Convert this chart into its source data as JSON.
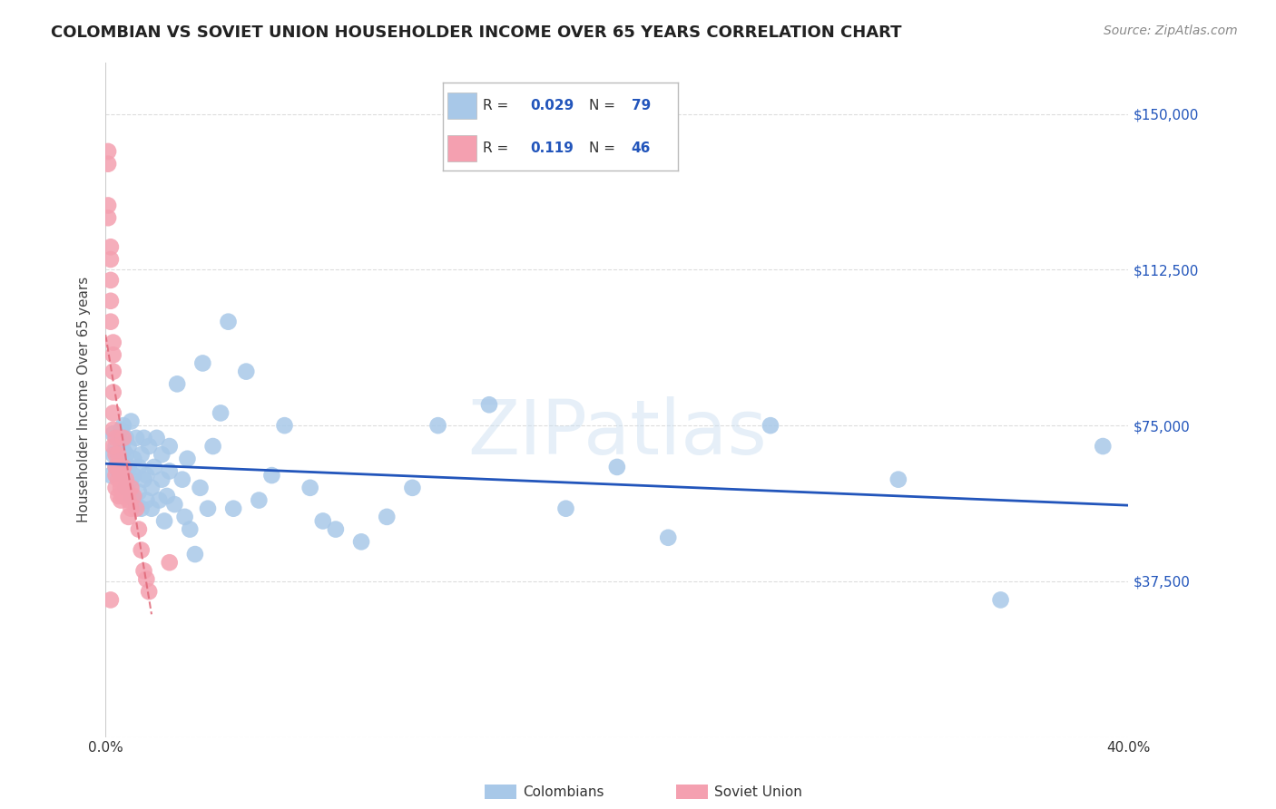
{
  "title": "COLOMBIAN VS SOVIET UNION HOUSEHOLDER INCOME OVER 65 YEARS CORRELATION CHART",
  "source": "Source: ZipAtlas.com",
  "ylabel": "Householder Income Over 65 years",
  "xlim": [
    0.0,
    0.4
  ],
  "ylim": [
    0,
    162500
  ],
  "yticks": [
    0,
    37500,
    75000,
    112500,
    150000
  ],
  "ytick_labels": [
    "",
    "$37,500",
    "$75,000",
    "$112,500",
    "$150,000"
  ],
  "xticks": [
    0.0,
    0.1,
    0.2,
    0.3,
    0.4
  ],
  "xtick_labels": [
    "0.0%",
    "",
    "",
    "",
    "40.0%"
  ],
  "colombian_color": "#a8c8e8",
  "soviet_color": "#f4a0b0",
  "trendline_colombian_color": "#2255bb",
  "trendline_soviet_color": "#e06878",
  "watermark": "ZIPatlas",
  "background_color": "#ffffff",
  "grid_color": "#dddddd",
  "colombians_x": [
    0.002,
    0.003,
    0.003,
    0.004,
    0.004,
    0.005,
    0.005,
    0.005,
    0.006,
    0.006,
    0.006,
    0.007,
    0.007,
    0.007,
    0.008,
    0.008,
    0.008,
    0.009,
    0.009,
    0.01,
    0.01,
    0.01,
    0.011,
    0.011,
    0.012,
    0.012,
    0.013,
    0.013,
    0.014,
    0.014,
    0.015,
    0.015,
    0.016,
    0.016,
    0.017,
    0.018,
    0.018,
    0.019,
    0.02,
    0.021,
    0.022,
    0.022,
    0.023,
    0.024,
    0.025,
    0.025,
    0.027,
    0.028,
    0.03,
    0.031,
    0.032,
    0.033,
    0.035,
    0.037,
    0.038,
    0.04,
    0.042,
    0.045,
    0.048,
    0.05,
    0.055,
    0.06,
    0.065,
    0.07,
    0.08,
    0.085,
    0.09,
    0.1,
    0.11,
    0.12,
    0.13,
    0.15,
    0.18,
    0.2,
    0.22,
    0.26,
    0.31,
    0.35,
    0.39
  ],
  "colombians_y": [
    63000,
    68000,
    73000,
    65000,
    70000,
    67000,
    72000,
    64000,
    71000,
    66000,
    74000,
    63000,
    69000,
    75000,
    68000,
    72000,
    60000,
    65000,
    70000,
    62000,
    76000,
    58000,
    63000,
    67000,
    56000,
    72000,
    59000,
    65000,
    68000,
    55000,
    72000,
    62000,
    57000,
    63000,
    70000,
    55000,
    60000,
    65000,
    72000,
    57000,
    62000,
    68000,
    52000,
    58000,
    64000,
    70000,
    56000,
    85000,
    62000,
    53000,
    67000,
    50000,
    44000,
    60000,
    90000,
    55000,
    70000,
    78000,
    100000,
    55000,
    88000,
    57000,
    63000,
    75000,
    60000,
    52000,
    50000,
    47000,
    53000,
    60000,
    75000,
    80000,
    55000,
    65000,
    48000,
    75000,
    62000,
    33000,
    70000
  ],
  "soviet_x": [
    0.001,
    0.001,
    0.001,
    0.001,
    0.002,
    0.002,
    0.002,
    0.002,
    0.002,
    0.003,
    0.003,
    0.003,
    0.003,
    0.003,
    0.003,
    0.003,
    0.004,
    0.004,
    0.004,
    0.004,
    0.004,
    0.005,
    0.005,
    0.005,
    0.005,
    0.006,
    0.006,
    0.006,
    0.007,
    0.007,
    0.007,
    0.008,
    0.008,
    0.009,
    0.009,
    0.01,
    0.01,
    0.011,
    0.012,
    0.013,
    0.014,
    0.015,
    0.016,
    0.017,
    0.025,
    0.002
  ],
  "soviet_y": [
    138000,
    141000,
    125000,
    128000,
    115000,
    118000,
    110000,
    105000,
    100000,
    95000,
    92000,
    88000,
    83000,
    78000,
    74000,
    70000,
    68000,
    65000,
    72000,
    63000,
    60000,
    68000,
    65000,
    62000,
    58000,
    63000,
    60000,
    57000,
    72000,
    65000,
    58000,
    60000,
    62000,
    57000,
    53000,
    60000,
    55000,
    58000,
    55000,
    50000,
    45000,
    40000,
    38000,
    35000,
    42000,
    33000
  ]
}
